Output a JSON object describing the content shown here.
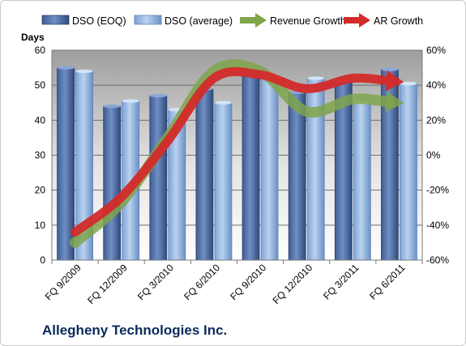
{
  "chart_data": {
    "type": "bar",
    "company": "Allegheny Technologies Inc.",
    "categories": [
      "FQ 9/2009",
      "FQ 12/2009",
      "FQ 3/2010",
      "FQ 6/2010",
      "FQ 9/2010",
      "FQ 12/2010",
      "FQ 3/2011",
      "FQ 6/2011"
    ],
    "ylabel": "Days",
    "ylim": [
      0,
      60
    ],
    "yticks": [
      "0",
      "10",
      "20",
      "30",
      "40",
      "50",
      "60"
    ],
    "y2lim": [
      -60,
      60
    ],
    "y2ticks": [
      "-60%",
      "-40%",
      "-20%",
      "0%",
      "20%",
      "40%",
      "60%"
    ],
    "grid": true,
    "legend_position": "top",
    "series": [
      {
        "name": "DSO (EOQ)",
        "type": "bar",
        "axis": "left",
        "color": "#4f6fa6",
        "values": [
          55,
          44,
          47,
          49,
          54,
          48,
          51,
          54.5
        ]
      },
      {
        "name": "DSO (average)",
        "type": "bar",
        "axis": "left",
        "color": "#8fb3e0",
        "values": [
          54,
          45.5,
          43,
          45,
          52,
          52,
          45,
          50.5
        ]
      },
      {
        "name": "Revenue Growth",
        "type": "line",
        "axis": "right",
        "color": "#7fa54b",
        "values": [
          -50,
          -27,
          10,
          48,
          48,
          25,
          32,
          30
        ]
      },
      {
        "name": "AR Growth",
        "type": "line",
        "axis": "right",
        "color": "#d42a2a",
        "values": [
          -44,
          -24,
          8,
          44,
          46,
          38,
          44,
          42
        ]
      }
    ]
  }
}
